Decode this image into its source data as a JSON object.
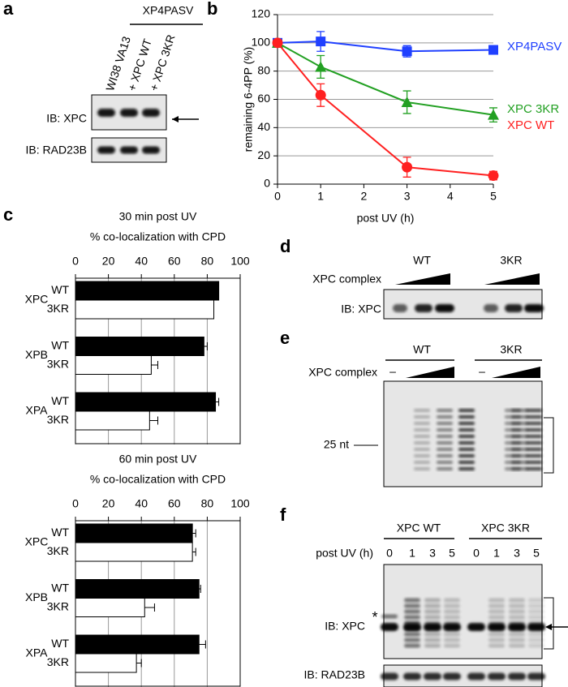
{
  "panels": {
    "a": {
      "letter": "a",
      "group_label": "XP4PASV",
      "lanes": [
        "WI38 VA13",
        "+ XPC WT",
        "+ XPC 3KR"
      ],
      "blots": [
        "IB: XPC",
        "IB: RAD23B"
      ]
    },
    "b": {
      "letter": "b"
    },
    "c": {
      "letter": "c"
    },
    "d": {
      "letter": "d",
      "groups": [
        "WT",
        "3KR"
      ],
      "treatment": "XPC complex",
      "blot": "IB: XPC"
    },
    "e": {
      "letter": "e",
      "groups": [
        "WT",
        "3KR"
      ],
      "treatment": "XPC complex",
      "controls": [
        "–",
        "–"
      ],
      "marker": "25 nt"
    },
    "f": {
      "letter": "f",
      "groups": [
        "XPC WT",
        "XPC 3KR"
      ],
      "time_label": "post UV (h)",
      "times": [
        "0",
        "1",
        "3",
        "5",
        "0",
        "1",
        "3",
        "5"
      ],
      "blots": [
        "IB: XPC",
        "IB: RAD23B"
      ],
      "asterisk": "*"
    }
  },
  "chart_data": [
    {
      "type": "line",
      "y_label": "remaining 6-4PP (%)",
      "x_label": "post UV (h)",
      "x": [
        0,
        1,
        3,
        5
      ],
      "xlim": [
        0,
        5
      ],
      "xticks": [
        0,
        1,
        2,
        3,
        4,
        5
      ],
      "ylim": [
        0,
        120
      ],
      "yticks": [
        0,
        20,
        40,
        60,
        80,
        100,
        120
      ],
      "grid": true,
      "series": [
        {
          "name": "XP4PASV",
          "color": "#2040ff",
          "marker": "square",
          "values": [
            100,
            101,
            94,
            95
          ],
          "errors": [
            0,
            7,
            4,
            3
          ]
        },
        {
          "name": "XPC 3KR",
          "color": "#22a022",
          "marker": "triangle",
          "values": [
            100,
            83,
            58,
            49
          ],
          "errors": [
            0,
            8,
            8,
            5
          ]
        },
        {
          "name": "XPC WT",
          "color": "#ff2020",
          "marker": "circle",
          "values": [
            100,
            63,
            12,
            6
          ],
          "errors": [
            0,
            8,
            7,
            3
          ]
        }
      ]
    },
    {
      "type": "hbar",
      "title": "30 min post UV",
      "x_label": "% co-localization with CPD",
      "categories": [
        "XPC",
        "XPB",
        "XPA"
      ],
      "xlim": [
        0,
        100
      ],
      "xticks": [
        0,
        20,
        40,
        60,
        80,
        100
      ],
      "grid": true,
      "series": [
        {
          "name": "WT",
          "color": "#000000",
          "values": [
            87,
            78,
            85
          ],
          "errors": [
            0,
            2,
            2
          ]
        },
        {
          "name": "3KR",
          "color": "#ffffff",
          "values": [
            84,
            46,
            45
          ],
          "errors": [
            0,
            4,
            5
          ]
        }
      ]
    },
    {
      "type": "hbar",
      "title": "60 min post UV",
      "x_label": "% co-localization with CPD",
      "categories": [
        "XPC",
        "XPB",
        "XPA"
      ],
      "xlim": [
        0,
        100
      ],
      "xticks": [
        0,
        20,
        40,
        60,
        80,
        100
      ],
      "grid": true,
      "series": [
        {
          "name": "WT",
          "color": "#000000",
          "values": [
            71,
            75,
            75
          ],
          "errors": [
            2,
            1,
            4
          ]
        },
        {
          "name": "3KR",
          "color": "#ffffff",
          "values": [
            71,
            42,
            37
          ],
          "errors": [
            2,
            6,
            3
          ]
        }
      ]
    }
  ]
}
